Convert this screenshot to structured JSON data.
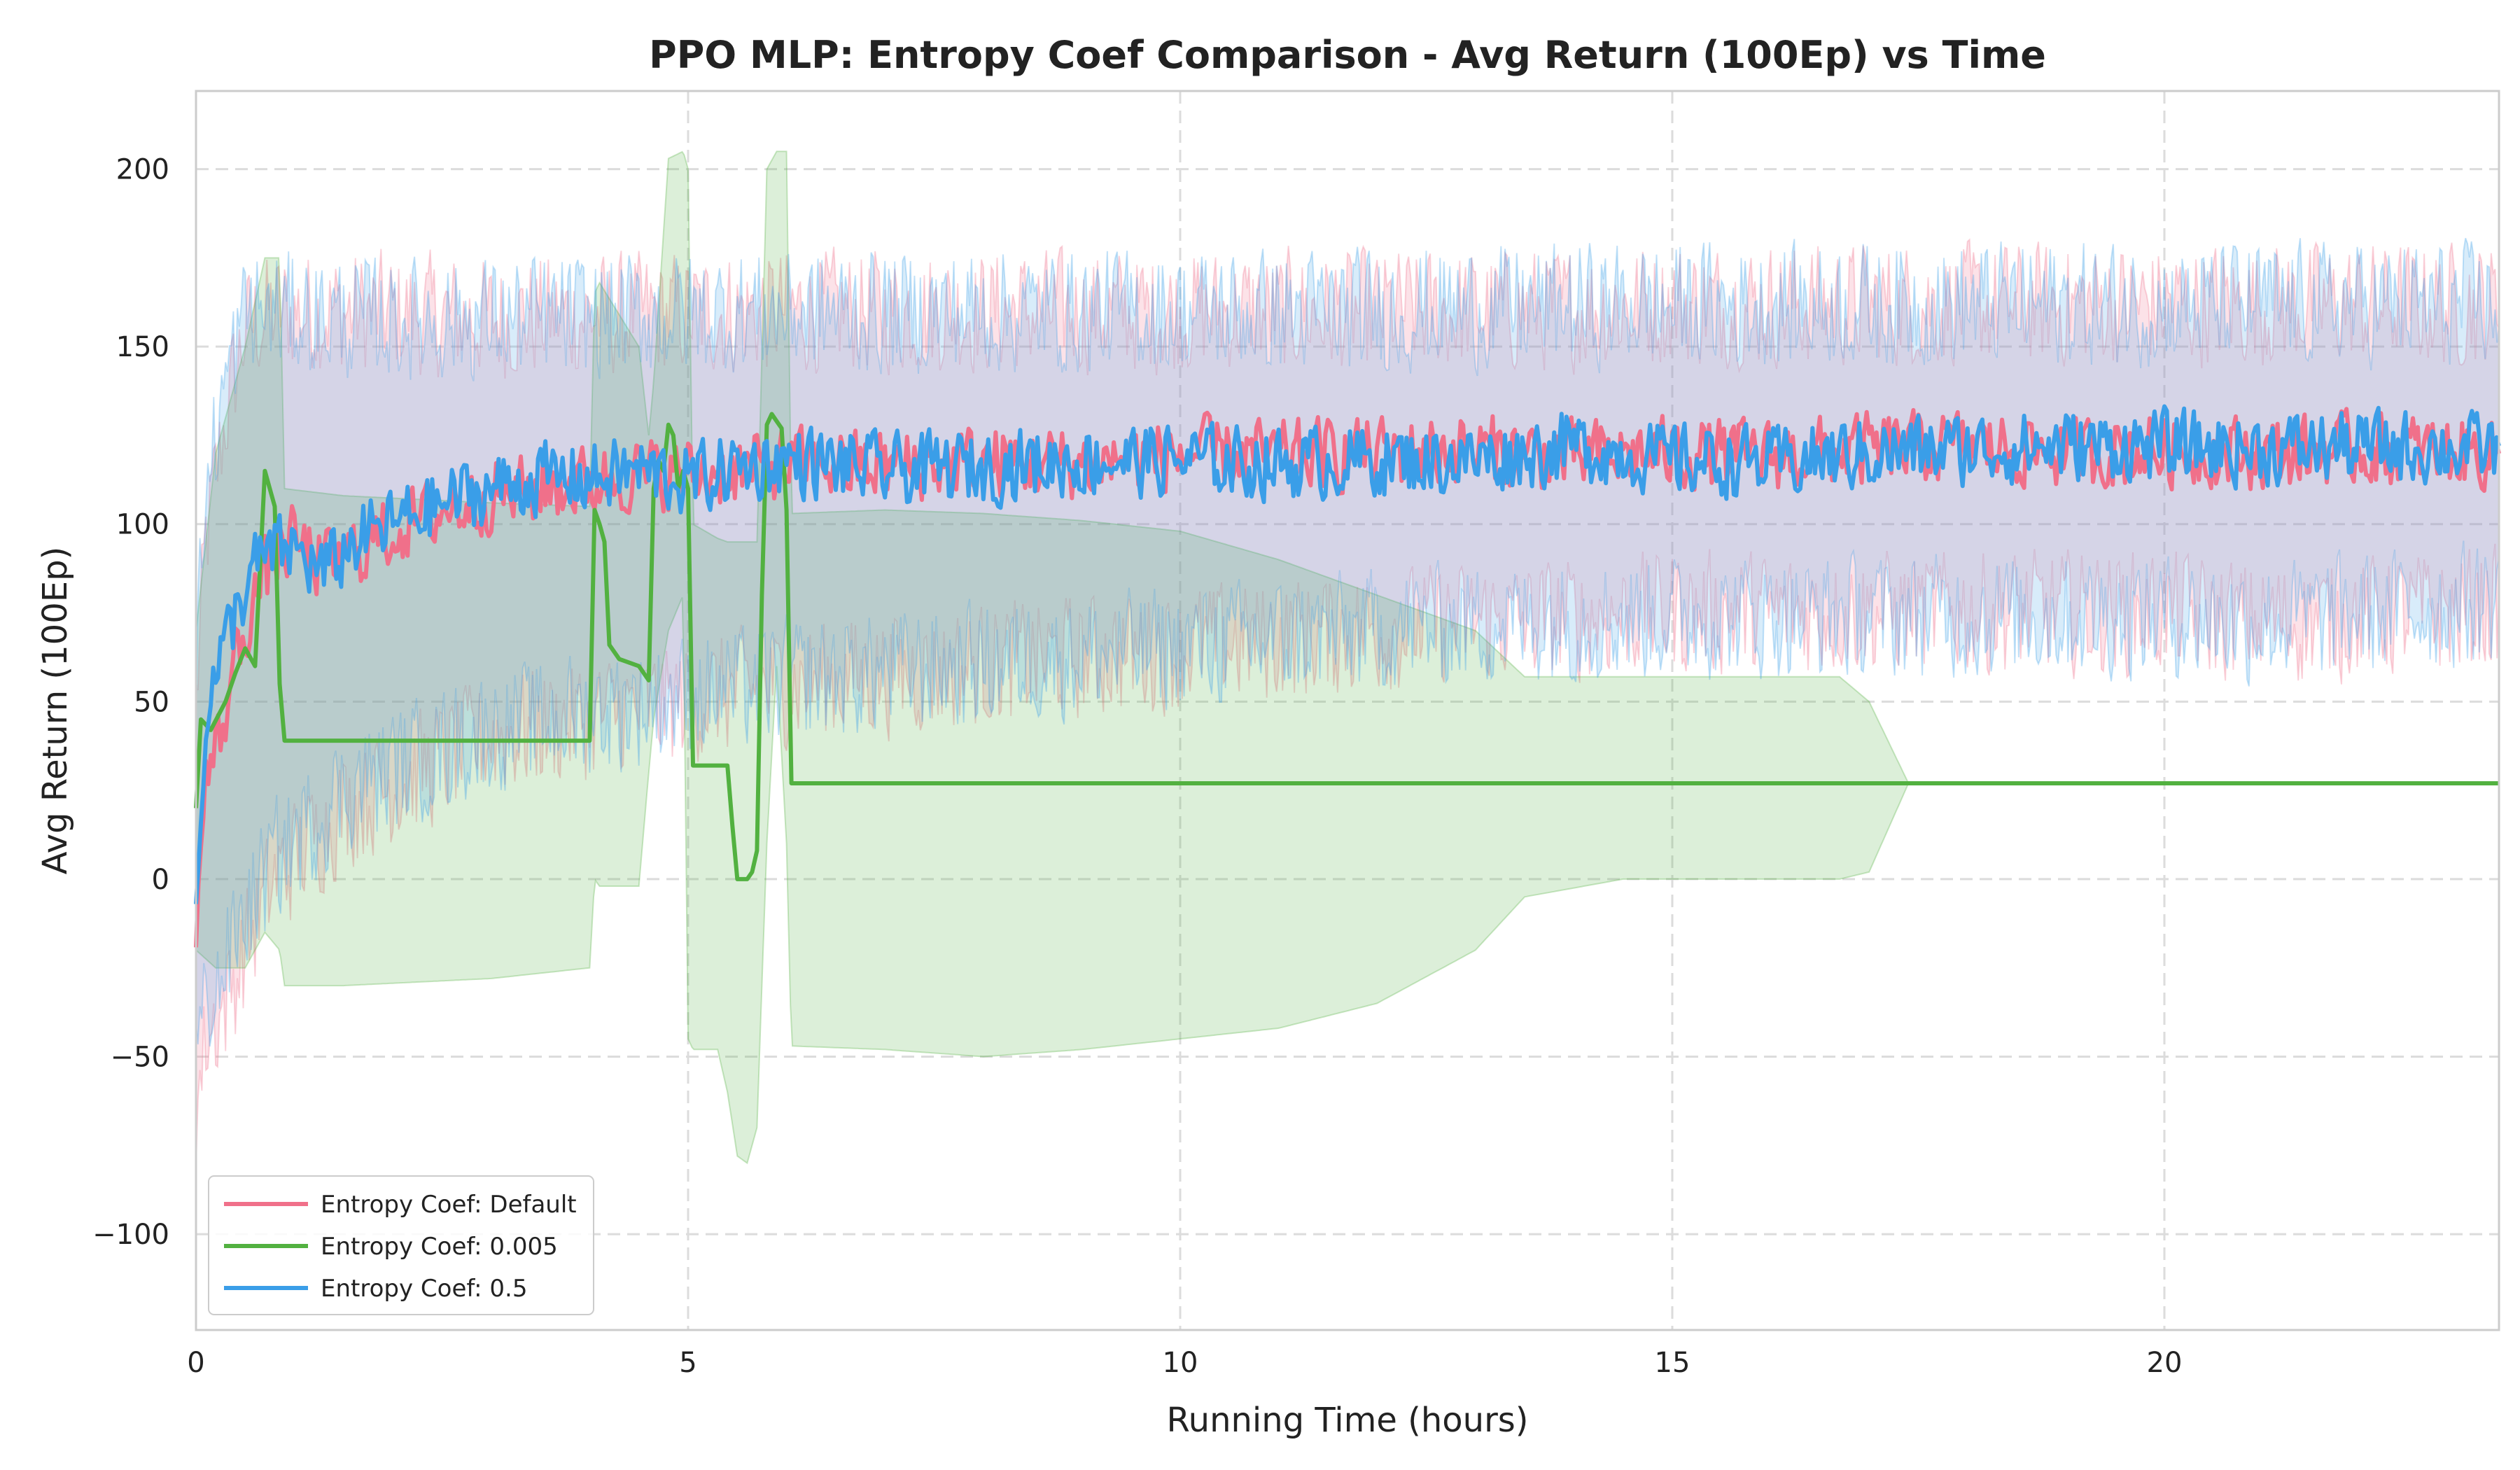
{
  "chart_data": {
    "type": "line",
    "title": "PPO MLP: Entropy Coef Comparison - Avg Return (100Ep) vs Time",
    "xlabel": "Running Time (hours)",
    "ylabel": "Avg Return (100Ep)",
    "xlim": [
      0,
      23.4
    ],
    "ylim": [
      -127,
      222
    ],
    "xticks": [
      0,
      5,
      10,
      15,
      20
    ],
    "xtick_labels": [
      "0",
      "5",
      "10",
      "15",
      "20"
    ],
    "yticks": [
      -100,
      -50,
      0,
      50,
      100,
      150,
      200
    ],
    "ytick_labels": [
      "−100",
      "−50",
      "0",
      "50",
      "100",
      "150",
      "200"
    ],
    "grid": true,
    "legend_position": "lower-left",
    "series": [
      {
        "name": "Entropy Coef: Default",
        "color": "#f0708a",
        "mean": {
          "x": [
            0,
            0.1,
            0.25,
            0.4,
            0.6,
            0.8,
            1.0,
            1.3,
            1.6,
            2.0,
            2.5,
            3.0,
            3.5,
            4.0,
            4.5,
            5.0,
            5.5,
            6.0,
            7.0,
            8.0,
            9.0,
            10.0,
            11.0,
            12.0,
            13.0,
            14.0,
            15.0,
            16.0,
            17.0,
            18.0,
            19.0,
            20.0,
            21.0,
            22.0,
            23.4
          ],
          "y": [
            -10,
            28,
            40,
            62,
            80,
            92,
            95,
            88,
            92,
            98,
            104,
            108,
            110,
            112,
            114,
            114,
            115,
            117,
            116,
            118,
            117,
            120,
            119,
            120,
            121,
            119,
            120,
            119,
            121,
            122,
            120,
            121,
            120,
            121,
            120
          ]
        },
        "band": {
          "x": [
            0,
            0.1,
            0.3,
            0.5,
            0.8,
            1.5,
            3.0,
            6.0,
            10.0,
            12.0,
            13.0,
            15.0,
            18.0,
            20.0,
            21.0,
            23.4
          ],
          "lower": [
            -65,
            -45,
            -35,
            -20,
            0,
            20,
            40,
            55,
            65,
            70,
            72,
            75,
            75,
            75,
            72,
            76
          ],
          "upper": [
            50,
            95,
            130,
            155,
            160,
            160,
            158,
            160,
            160,
            160,
            160,
            162,
            162,
            162,
            162,
            162
          ]
        }
      },
      {
        "name": "Entropy Coef: 0.005",
        "color": "#52b140",
        "mean": {
          "x": [
            0,
            0.05,
            0.15,
            0.3,
            0.4,
            0.5,
            0.6,
            0.7,
            0.75,
            0.8,
            0.85,
            0.9,
            4.0,
            4.05,
            4.1,
            4.15,
            4.2,
            4.3,
            4.5,
            4.6,
            4.65,
            4.7,
            4.75,
            4.8,
            4.85,
            4.9,
            4.95,
            5.0,
            5.05,
            5.1,
            5.4,
            5.45,
            5.5,
            5.6,
            5.65,
            5.7,
            5.75,
            5.8,
            5.85,
            5.9,
            5.95,
            6.0,
            6.05,
            23.4
          ],
          "y": [
            20,
            45,
            42,
            50,
            58,
            65,
            60,
            115,
            110,
            105,
            55,
            39,
            39,
            104,
            100,
            95,
            66,
            62,
            60,
            56,
            110,
            118,
            115,
            128,
            125,
            110,
            115,
            110,
            32,
            32,
            32,
            15,
            0,
            0,
            2,
            8,
            80,
            128,
            131,
            129,
            127,
            104,
            27,
            27
          ]
        },
        "band": {
          "x": [
            0,
            0.2,
            0.5,
            0.7,
            0.85,
            0.9,
            1.5,
            3.0,
            4.0,
            4.05,
            4.1,
            4.5,
            4.6,
            4.65,
            4.8,
            4.95,
            5.0,
            5.05,
            5.3,
            5.4,
            5.5,
            5.6,
            5.7,
            5.8,
            5.9,
            6.0,
            6.05,
            7.0,
            8.0,
            9.0,
            10.0,
            11.0,
            12.0,
            13.0,
            13.5,
            14.5,
            16.0,
            16.7,
            17.0,
            17.4,
            23.4
          ],
          "lower": [
            -20,
            -25,
            -25,
            -15,
            -20,
            -30,
            -30,
            -28,
            -25,
            0,
            -2,
            -2,
            30,
            45,
            70,
            80,
            -45,
            -48,
            -48,
            -60,
            -78,
            -80,
            -70,
            10,
            60,
            10,
            -47,
            -48,
            -50,
            -48,
            -45,
            -42,
            -35,
            -20,
            -5,
            0,
            0,
            0,
            2,
            27,
            27
          ],
          "upper": [
            70,
            120,
            150,
            175,
            175,
            110,
            108,
            106,
            105,
            165,
            168,
            150,
            125,
            140,
            203,
            205,
            200,
            100,
            96,
            95,
            95,
            95,
            95,
            200,
            205,
            205,
            103,
            104,
            103,
            101,
            98,
            90,
            80,
            70,
            57,
            57,
            57,
            57,
            50,
            27,
            27
          ]
        }
      },
      {
        "name": "Entropy Coef: 0.5",
        "color": "#3a9ee8",
        "mean": {
          "x": [
            0,
            0.1,
            0.25,
            0.4,
            0.6,
            0.8,
            1.0,
            1.3,
            1.6,
            2.0,
            2.5,
            3.0,
            3.5,
            4.0,
            4.5,
            5.0,
            5.5,
            6.0,
            7.0,
            8.0,
            9.0,
            10.0,
            11.0,
            12.0,
            13.0,
            14.0,
            15.0,
            16.0,
            17.0,
            18.0,
            19.0,
            20.0,
            21.0,
            22.0,
            23.4
          ],
          "y": [
            -10,
            48,
            62,
            75,
            88,
            92,
            93,
            86,
            95,
            100,
            106,
            110,
            113,
            113,
            115,
            112,
            116,
            118,
            115,
            116,
            118,
            118,
            117,
            118,
            118,
            122,
            118,
            117,
            120,
            121,
            122,
            122,
            121,
            122,
            121
          ]
        },
        "band": {
          "x": [
            0,
            0.1,
            0.3,
            0.5,
            0.8,
            1.5,
            3.0,
            6.0,
            10.0,
            12.0,
            13.0,
            15.0,
            18.0,
            20.0,
            21.0,
            23.4
          ],
          "lower": [
            -50,
            -35,
            -25,
            -10,
            5,
            25,
            42,
            56,
            65,
            70,
            72,
            74,
            74,
            74,
            72,
            78
          ],
          "upper": [
            60,
            110,
            140,
            160,
            160,
            158,
            158,
            160,
            160,
            160,
            161,
            162,
            162,
            162,
            162,
            162
          ]
        }
      }
    ]
  }
}
